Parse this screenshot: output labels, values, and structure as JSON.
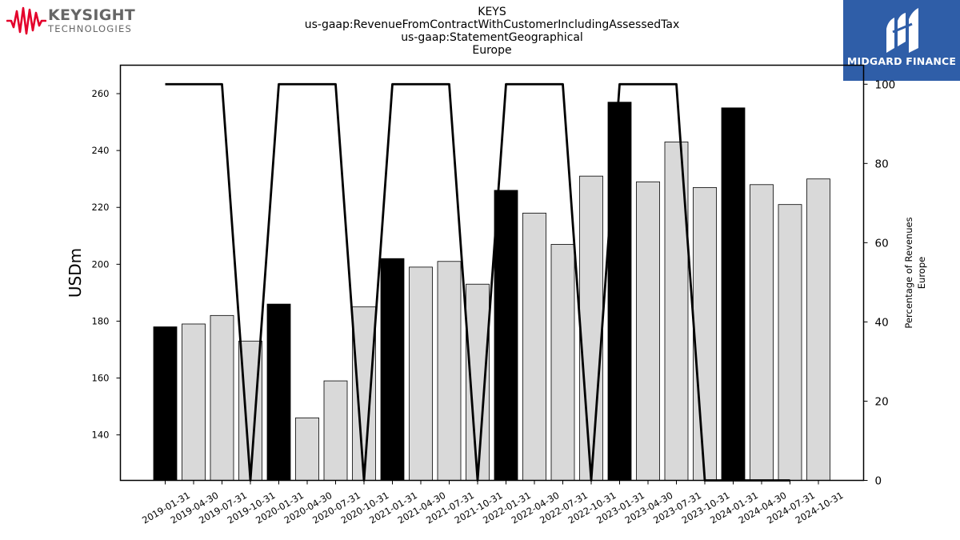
{
  "header": {
    "line1": "KEYS",
    "line2": "us-gaap:RevenueFromContractWithCustomerIncludingAssessedTax",
    "line3": "us-gaap:StatementGeographical",
    "line4": "Europe"
  },
  "logos": {
    "keysight_name": "KEYSIGHT",
    "keysight_sub": "TECHNOLOGIES",
    "keysight_color": "#e4002b",
    "midgard_name": "MIDGARD FINANCE",
    "midgard_color": "#2f5ea8"
  },
  "chart_data": {
    "type": "bar",
    "ylabel": "USDm",
    "y2label_line1": "Percentage of Revenues",
    "y2label_line2": "Europe",
    "ylim": [
      124,
      270
    ],
    "y2lim": [
      0,
      104.8
    ],
    "yticks": [
      140,
      160,
      180,
      200,
      220,
      240,
      260
    ],
    "y2ticks": [
      0,
      20,
      40,
      60,
      80,
      100
    ],
    "categories": [
      "2019-01-31",
      "2019-04-30",
      "2019-07-31",
      "2019-10-31",
      "2020-01-31",
      "2020-04-30",
      "2020-07-31",
      "2020-10-31",
      "2021-01-31",
      "2021-04-30",
      "2021-07-31",
      "2021-10-31",
      "2022-01-31",
      "2022-04-30",
      "2022-07-31",
      "2022-10-31",
      "2023-01-31",
      "2023-04-30",
      "2023-07-31",
      "2023-10-31",
      "2024-01-31",
      "2024-04-30",
      "2024-07-31",
      "2024-10-31"
    ],
    "values": [
      178,
      179,
      182,
      173,
      186,
      146,
      159,
      185,
      202,
      199,
      201,
      193,
      226,
      218,
      207,
      231,
      257,
      229,
      243,
      227,
      255,
      228,
      221,
      230
    ],
    "highlighted": [
      true,
      false,
      false,
      false,
      true,
      false,
      false,
      false,
      true,
      false,
      false,
      false,
      true,
      false,
      false,
      false,
      true,
      false,
      false,
      false,
      true,
      false,
      false,
      false
    ],
    "bar_color": "#d9d9d9",
    "highlight_color": "#000000",
    "line_series": {
      "values": [
        100,
        100,
        100,
        0,
        100,
        100,
        100,
        0,
        100,
        100,
        100,
        0,
        100,
        100,
        100,
        0,
        100,
        100,
        100,
        0,
        0,
        0,
        0,
        null
      ],
      "color": "#000000"
    },
    "grid": false
  }
}
